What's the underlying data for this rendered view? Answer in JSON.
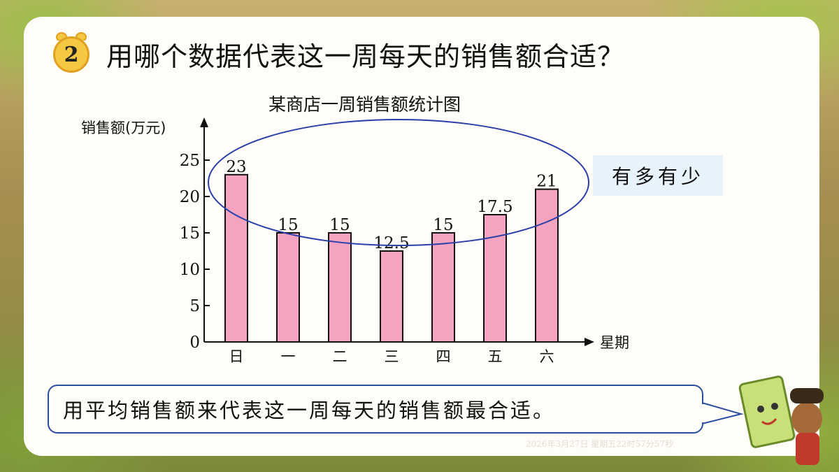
{
  "question": {
    "number": "2",
    "text": "用哪个数据代表这一周每天的销售额合适？"
  },
  "chart_data": {
    "type": "bar",
    "title": "某商店一周销售额统计图",
    "ylabel": "销售额(万元)",
    "xlabel": "星期",
    "categories": [
      "日",
      "一",
      "二",
      "三",
      "四",
      "五",
      "六"
    ],
    "values": [
      23,
      15,
      15,
      12.5,
      15,
      17.5,
      21
    ],
    "data_labels": [
      "23",
      "15",
      "15",
      "12.5",
      "15",
      "17.5",
      "21"
    ],
    "ylim": [
      0,
      25
    ],
    "yticks": [
      "0",
      "5",
      "10",
      "15",
      "20",
      "25"
    ],
    "bar_color": "#f4a3c1",
    "grid": false
  },
  "annotation": {
    "text": "有多有少",
    "ellipse_color": "#2b3fa8"
  },
  "answer": {
    "text": "用平均销售额来代表这一周每天的销售额最合适。"
  },
  "timestamp": "2026年3月27日 星期五22时57分57秒"
}
